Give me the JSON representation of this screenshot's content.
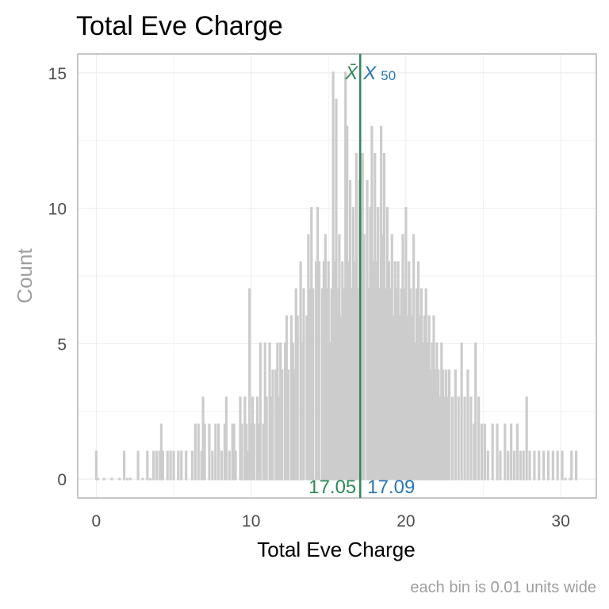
{
  "chart_data": {
    "type": "bar",
    "title": "Total Eve Charge",
    "xlabel": "Total Eve Charge",
    "ylabel": "Count",
    "caption": "each bin is 0.01 units wide",
    "xlim": [
      -1.2,
      32.3
    ],
    "ylim": [
      -0.7,
      15.7
    ],
    "x_ticks": [
      0,
      10,
      20,
      30
    ],
    "x_tick_labels": [
      "0",
      "10",
      "20",
      "30"
    ],
    "y_ticks": [
      0,
      5,
      10,
      15
    ],
    "y_tick_labels": [
      "0",
      "5",
      "10",
      "15"
    ],
    "grid": true,
    "bar_color": "#cccccc",
    "bins": [
      [
        0.0,
        1
      ],
      [
        0.1,
        0
      ],
      [
        0.5,
        0
      ],
      [
        1.0,
        0
      ],
      [
        1.5,
        0
      ],
      [
        1.8,
        1
      ],
      [
        2.0,
        0
      ],
      [
        2.2,
        0
      ],
      [
        2.7,
        1
      ],
      [
        3.0,
        0
      ],
      [
        3.3,
        1
      ],
      [
        3.5,
        0
      ],
      [
        3.7,
        1
      ],
      [
        3.9,
        1
      ],
      [
        4.1,
        1
      ],
      [
        4.2,
        2
      ],
      [
        4.3,
        1
      ],
      [
        4.6,
        1
      ],
      [
        4.8,
        1
      ],
      [
        5.0,
        1
      ],
      [
        5.3,
        1
      ],
      [
        5.5,
        1
      ],
      [
        5.8,
        1
      ],
      [
        6.2,
        1
      ],
      [
        6.4,
        2
      ],
      [
        6.6,
        2
      ],
      [
        6.8,
        1
      ],
      [
        6.9,
        3
      ],
      [
        7.0,
        2
      ],
      [
        7.3,
        2
      ],
      [
        7.5,
        1
      ],
      [
        7.7,
        2
      ],
      [
        7.9,
        2
      ],
      [
        8.1,
        1
      ],
      [
        8.3,
        2
      ],
      [
        8.4,
        3
      ],
      [
        8.6,
        1
      ],
      [
        8.8,
        2
      ],
      [
        8.9,
        2
      ],
      [
        9.0,
        1
      ],
      [
        9.3,
        3
      ],
      [
        9.4,
        2
      ],
      [
        9.6,
        3
      ],
      [
        9.7,
        2
      ],
      [
        9.8,
        1
      ],
      [
        9.9,
        7
      ],
      [
        10.0,
        2
      ],
      [
        10.1,
        3
      ],
      [
        10.2,
        2
      ],
      [
        10.4,
        3
      ],
      [
        10.5,
        2
      ],
      [
        10.6,
        5
      ],
      [
        10.8,
        2
      ],
      [
        10.9,
        5
      ],
      [
        11.0,
        3
      ],
      [
        11.2,
        5
      ],
      [
        11.3,
        3
      ],
      [
        11.4,
        4
      ],
      [
        11.6,
        4
      ],
      [
        11.7,
        5
      ],
      [
        11.8,
        3
      ],
      [
        11.9,
        5
      ],
      [
        12.0,
        4
      ],
      [
        12.2,
        5
      ],
      [
        12.3,
        6
      ],
      [
        12.4,
        4
      ],
      [
        12.6,
        6
      ],
      [
        12.7,
        5
      ],
      [
        12.8,
        4
      ],
      [
        12.9,
        7
      ],
      [
        13.0,
        6
      ],
      [
        13.2,
        8
      ],
      [
        13.3,
        5
      ],
      [
        13.4,
        7
      ],
      [
        13.6,
        6
      ],
      [
        13.7,
        9
      ],
      [
        13.8,
        7
      ],
      [
        13.9,
        10
      ],
      [
        14.0,
        7
      ],
      [
        14.2,
        8
      ],
      [
        14.3,
        10
      ],
      [
        14.4,
        8
      ],
      [
        14.6,
        7
      ],
      [
        14.7,
        8
      ],
      [
        14.8,
        9
      ],
      [
        14.9,
        7
      ],
      [
        15.0,
        8
      ],
      [
        15.1,
        5
      ],
      [
        15.2,
        7
      ],
      [
        15.3,
        15
      ],
      [
        15.4,
        8
      ],
      [
        15.5,
        14
      ],
      [
        15.6,
        7
      ],
      [
        15.7,
        9
      ],
      [
        15.8,
        6
      ],
      [
        15.9,
        8
      ],
      [
        16.0,
        7
      ],
      [
        16.1,
        15
      ],
      [
        16.2,
        13
      ],
      [
        16.3,
        8
      ],
      [
        16.4,
        11
      ],
      [
        16.5,
        7
      ],
      [
        16.6,
        10
      ],
      [
        16.7,
        8
      ],
      [
        16.8,
        12
      ],
      [
        16.9,
        7
      ],
      [
        17.0,
        11
      ],
      [
        17.1,
        10
      ],
      [
        17.2,
        12
      ],
      [
        17.3,
        9
      ],
      [
        17.5,
        11
      ],
      [
        17.6,
        7
      ],
      [
        17.7,
        10
      ],
      [
        17.8,
        13
      ],
      [
        17.9,
        8
      ],
      [
        18.0,
        12
      ],
      [
        18.1,
        8
      ],
      [
        18.2,
        10
      ],
      [
        18.3,
        7
      ],
      [
        18.4,
        13
      ],
      [
        18.5,
        9
      ],
      [
        18.6,
        12
      ],
      [
        18.7,
        7
      ],
      [
        18.8,
        10
      ],
      [
        18.9,
        8
      ],
      [
        19.0,
        7
      ],
      [
        19.1,
        9
      ],
      [
        19.2,
        6
      ],
      [
        19.3,
        8
      ],
      [
        19.4,
        7
      ],
      [
        19.5,
        8
      ],
      [
        19.6,
        6
      ],
      [
        19.7,
        7
      ],
      [
        19.8,
        9
      ],
      [
        19.9,
        7
      ],
      [
        20.0,
        10
      ],
      [
        20.1,
        6
      ],
      [
        20.2,
        8
      ],
      [
        20.3,
        7
      ],
      [
        20.4,
        6
      ],
      [
        20.5,
        9
      ],
      [
        20.6,
        5
      ],
      [
        20.7,
        7
      ],
      [
        20.8,
        8
      ],
      [
        20.9,
        6
      ],
      [
        21.0,
        7
      ],
      [
        21.1,
        5
      ],
      [
        21.2,
        6
      ],
      [
        21.3,
        7
      ],
      [
        21.4,
        5
      ],
      [
        21.5,
        6
      ],
      [
        21.6,
        4
      ],
      [
        21.7,
        5
      ],
      [
        21.8,
        6
      ],
      [
        21.9,
        4
      ],
      [
        22.0,
        5
      ],
      [
        22.1,
        4
      ],
      [
        22.2,
        3
      ],
      [
        22.3,
        5
      ],
      [
        22.4,
        4
      ],
      [
        22.5,
        3
      ],
      [
        22.6,
        4
      ],
      [
        22.7,
        3
      ],
      [
        22.8,
        4
      ],
      [
        23.0,
        3
      ],
      [
        23.2,
        4
      ],
      [
        23.4,
        3
      ],
      [
        23.6,
        5
      ],
      [
        23.8,
        3
      ],
      [
        24.0,
        4
      ],
      [
        24.2,
        3
      ],
      [
        24.4,
        2
      ],
      [
        24.5,
        5
      ],
      [
        24.7,
        3
      ],
      [
        24.9,
        2
      ],
      [
        25.1,
        2
      ],
      [
        25.3,
        1
      ],
      [
        25.6,
        2
      ],
      [
        25.9,
        2
      ],
      [
        26.1,
        1
      ],
      [
        26.4,
        2
      ],
      [
        26.6,
        1
      ],
      [
        26.8,
        2
      ],
      [
        27.0,
        1
      ],
      [
        27.2,
        2
      ],
      [
        27.4,
        1
      ],
      [
        27.6,
        1
      ],
      [
        27.8,
        3
      ],
      [
        28.0,
        1
      ],
      [
        28.3,
        1
      ],
      [
        28.6,
        1
      ],
      [
        28.9,
        1
      ],
      [
        29.2,
        1
      ],
      [
        29.5,
        1
      ],
      [
        29.8,
        1
      ],
      [
        30.1,
        1
      ],
      [
        30.3,
        0
      ],
      [
        30.6,
        0
      ],
      [
        30.7,
        1
      ],
      [
        31.0,
        1
      ]
    ],
    "annotations": [
      {
        "name": "mean",
        "symbol": "X̄",
        "x": 17.05,
        "label": "17.05",
        "color": "#2e8b57"
      },
      {
        "name": "median",
        "symbol": "X",
        "subscript": "50",
        "x": 17.09,
        "label": "17.09",
        "color": "#2878b4"
      }
    ]
  }
}
